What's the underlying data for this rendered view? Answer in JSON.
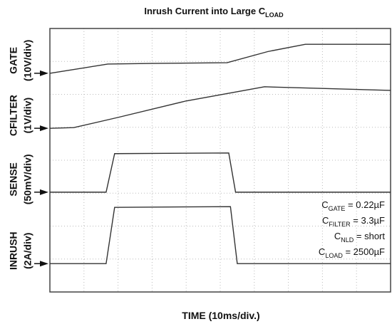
{
  "chart_data": {
    "type": "line",
    "title": {
      "main": "Inrush Current into Large C",
      "sub": "LOAD"
    },
    "xlabel": "TIME (10ms/div.)",
    "channels": [
      {
        "name": "GATE",
        "scale": "(10V/div)"
      },
      {
        "name": "CFILTER",
        "scale": "(1V/div)"
      },
      {
        "name": "SENSE",
        "scale": "(50mV/div)"
      },
      {
        "name": "INRUSH",
        "scale": "(2A/div)"
      }
    ],
    "annotations": [
      {
        "main": "C",
        "sub": "GATE",
        "rest": " = 0.22µF"
      },
      {
        "main": "C",
        "sub": "FILTER",
        "rest": " = 3.3µF"
      },
      {
        "main": "C",
        "sub": "NLD",
        "rest": " = short"
      },
      {
        "main": "C",
        "sub": "LOAD",
        "rest": " = 2500µF"
      }
    ],
    "xlim": [
      0,
      10
    ],
    "ylim": [
      0,
      8
    ],
    "xticks": [
      0,
      1,
      2,
      3,
      4,
      5,
      6,
      7,
      8,
      9,
      10
    ],
    "yticks": [
      0,
      1,
      2,
      3,
      4,
      5,
      6,
      7,
      8
    ],
    "grid": true,
    "series": [
      {
        "color": "#333333",
        "x": [
          0,
          1.7,
          3,
          5.2,
          6.4,
          7.5,
          10
        ],
        "values": [
          6.64,
          6.92,
          6.94,
          6.96,
          7.3,
          7.52,
          7.52
        ]
      },
      {
        "color": "#333333",
        "x": [
          0,
          0.7,
          2,
          4,
          6.3,
          8,
          10
        ],
        "values": [
          4.97,
          4.99,
          5.3,
          5.8,
          6.23,
          6.18,
          6.12
        ]
      },
      {
        "color": "#333333",
        "x": [
          0,
          1.65,
          1.9,
          5.25,
          5.45,
          10
        ],
        "values": [
          3.03,
          3.03,
          4.2,
          4.22,
          3.03,
          3.03
        ]
      },
      {
        "color": "#333333",
        "x": [
          0,
          1.65,
          1.9,
          5.3,
          5.5,
          10
        ],
        "values": [
          0.86,
          0.86,
          2.57,
          2.59,
          0.86,
          0.86
        ]
      }
    ]
  }
}
